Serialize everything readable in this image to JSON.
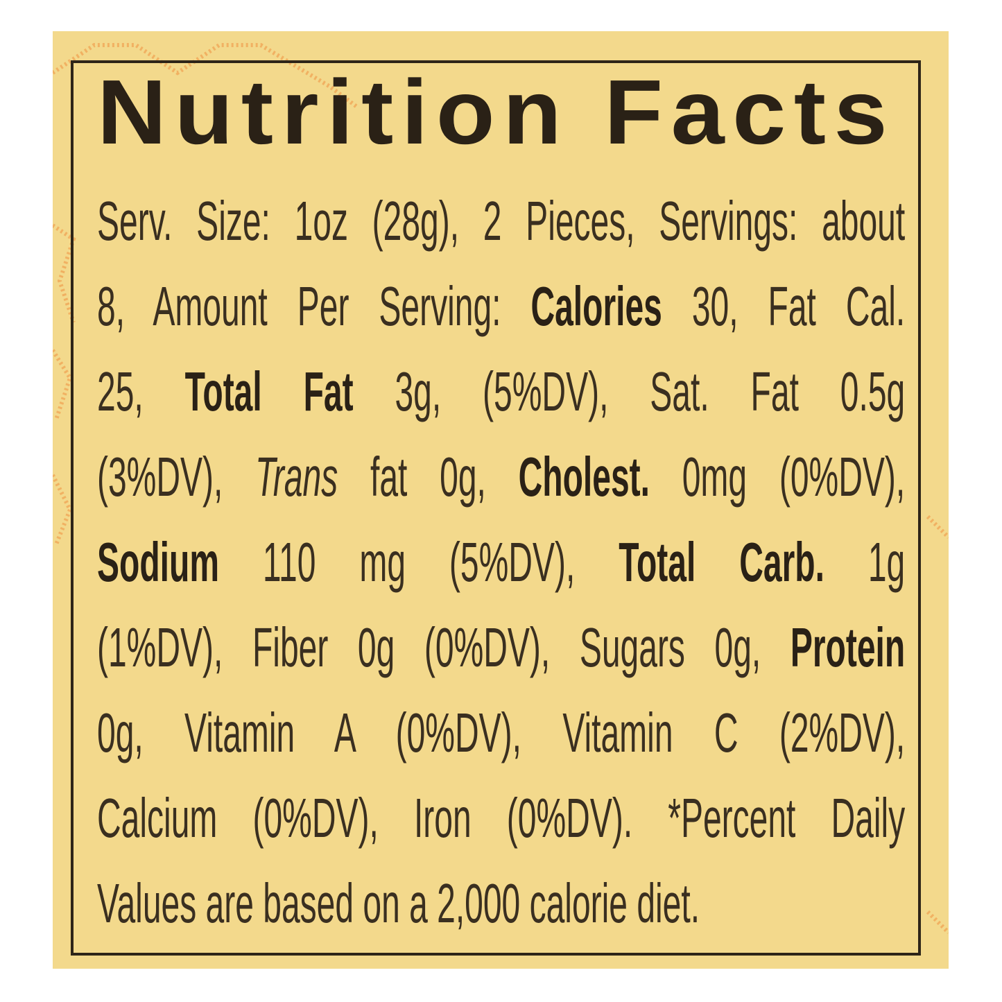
{
  "colors": {
    "label_background": "#f3d98c",
    "ink": "#2e2518",
    "pattern": "#f0a050"
  },
  "title": "Nutrition Facts",
  "lines": [
    [
      {
        "t": "Serv. Size: 1oz (28g), 2 Pieces, Servings: about",
        "s": "n"
      }
    ],
    [
      {
        "t": "8, Amount Per Serving: ",
        "s": "n"
      },
      {
        "t": "Calories",
        "s": "b"
      },
      {
        "t": " 30, Fat Cal.",
        "s": "n"
      }
    ],
    [
      {
        "t": "25, ",
        "s": "n"
      },
      {
        "t": "Total Fat",
        "s": "b"
      },
      {
        "t": " 3g, (5%DV), Sat. Fat 0.5g",
        "s": "n"
      }
    ],
    [
      {
        "t": "(3%DV), ",
        "s": "n"
      },
      {
        "t": "Trans",
        "s": "i"
      },
      {
        "t": " fat 0g, ",
        "s": "n"
      },
      {
        "t": "Cholest.",
        "s": "b"
      },
      {
        "t": " 0mg (0%DV),",
        "s": "n"
      }
    ],
    [
      {
        "t": "Sodium",
        "s": "b"
      },
      {
        "t": " 110 mg (5%DV), ",
        "s": "n"
      },
      {
        "t": "Total Carb.",
        "s": "b"
      },
      {
        "t": " 1g",
        "s": "n"
      }
    ],
    [
      {
        "t": "(1%DV), Fiber 0g (0%DV), Sugars 0g, ",
        "s": "n"
      },
      {
        "t": "Protein",
        "s": "b"
      }
    ],
    [
      {
        "t": "0g, Vitamin A (0%DV), Vitamin C (2%DV),",
        "s": "n"
      }
    ],
    [
      {
        "t": "Calcium (0%DV), Iron (0%DV). *Percent Daily",
        "s": "n"
      }
    ],
    [
      {
        "t": "Values are based on a 2,000 calorie diet.",
        "s": "n"
      }
    ]
  ]
}
